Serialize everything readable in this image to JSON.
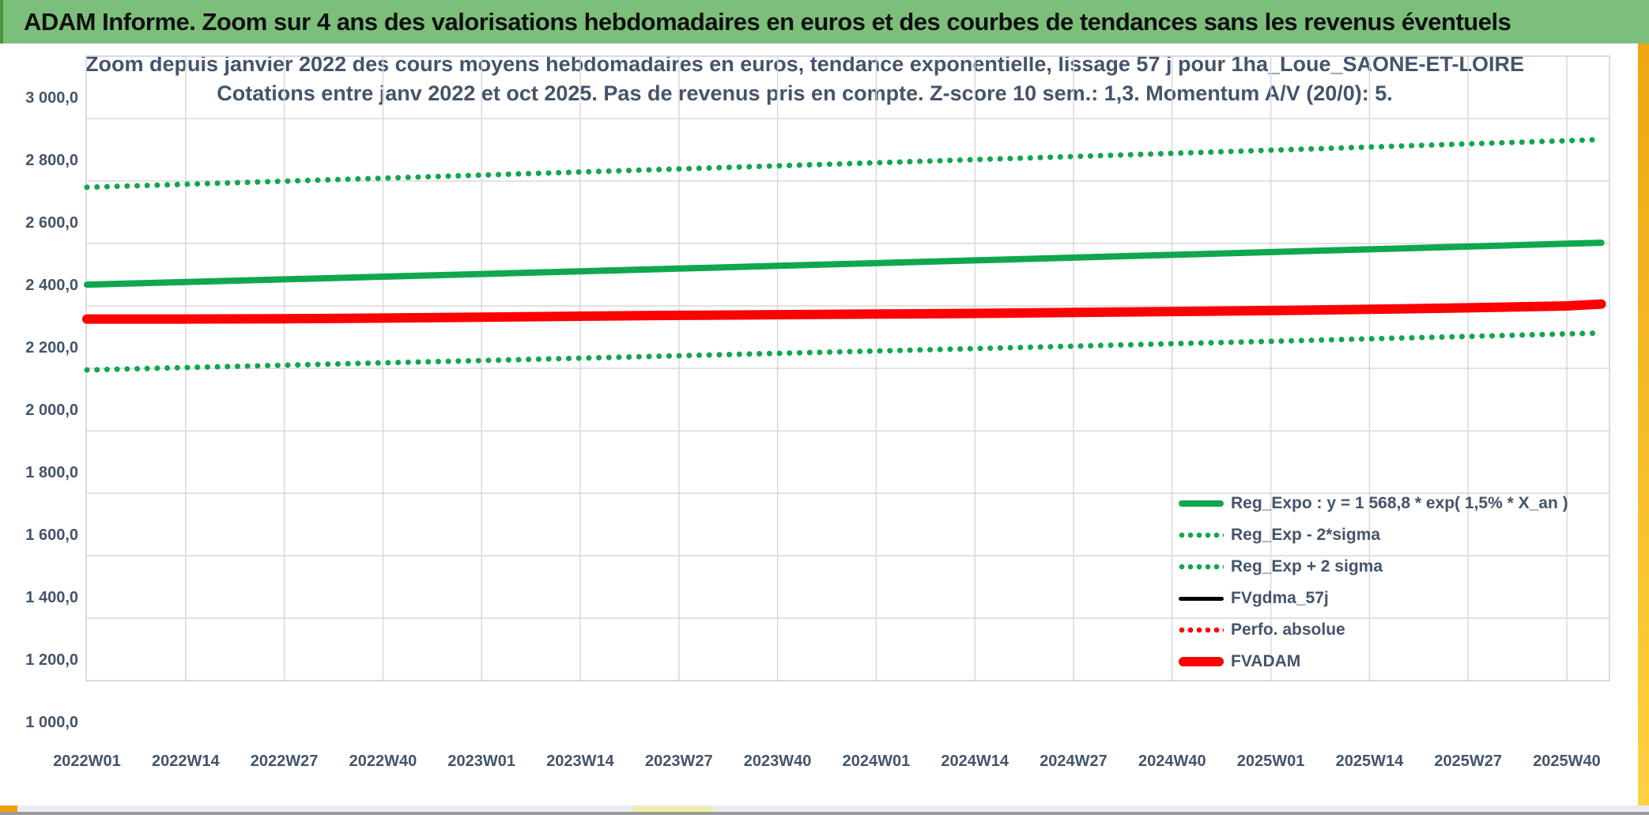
{
  "header": {
    "title": "ADAM Informe. Zoom sur 4 ans des valorisations hebdomadaires en euros et des courbes de tendances sans les revenus éventuels",
    "bg": "#7CBF7B",
    "edge": "#48953F",
    "text_color": "#101010"
  },
  "colors": {
    "text_dark": "#44546A",
    "grid": "#D8D8D8",
    "plot_border": "#D0D3D9",
    "green": "#10A74F",
    "red": "#FF0000",
    "black": "#000000"
  },
  "decor": {
    "right_strip_top": "#EDA612",
    "right_strip_bottom": "#FFD23F",
    "bottom_bar": "#E9EBF2",
    "bottom_edge": "#9A9A9A",
    "orange_chip": "#F0A202",
    "pale_yellow_chip": "#F2EFA0"
  },
  "chart_data": {
    "type": "line",
    "title": "Zoom depuis janvier 2022 des cours moyens hebdomadaires en euros, tendance exponentielle, lissage 57 j pour 1ha_Loue_SAONE-ET-LOIRE",
    "subtitle": "Cotations entre janv 2022 et oct 2025. Pas de revenus pris en compte. Z-score 10 sem.: 1,3. Momentum A/V (20/0): 5.",
    "xlabel": "",
    "ylabel": "",
    "grid": true,
    "legend_position": "inside-bottom-right",
    "ylim": [
      1000,
      3000
    ],
    "y_tick_values": [
      3000,
      2800,
      2600,
      2400,
      2200,
      2000,
      1800,
      1600,
      1400,
      1200,
      1000
    ],
    "y_tick_labels": [
      "3 000,0",
      "2 800,0",
      "2 600,0",
      "2 400,0",
      "2 200,0",
      "2 000,0",
      "1 800,0",
      "1 600,0",
      "1 400,0",
      "1 200,0",
      "1 000,0"
    ],
    "categories": [
      "2022W01",
      "2022W14",
      "2022W27",
      "2022W40",
      "2023W01",
      "2023W14",
      "2023W27",
      "2023W40",
      "2024W01",
      "2024W14",
      "2024W27",
      "2024W40",
      "2025W01",
      "2025W14",
      "2025W27",
      "2025W40"
    ],
    "end_x_fraction": 15.35,
    "series": [
      {
        "key": "reg_expo",
        "name": "Reg_Expo : y = 1 568,8 * exp( 1,5% *  X_an )",
        "color": "#10A74F",
        "style": "solid",
        "width": 8,
        "values": [
          2268.0,
          2276.5,
          2285.1,
          2293.7,
          2302.3,
          2310.9,
          2319.6,
          2328.3,
          2337.0,
          2345.8,
          2354.6,
          2363.5,
          2372.4,
          2381.3,
          2390.2,
          2399.2
        ],
        "end_value": 2402.4
      },
      {
        "key": "reg_exp_minus_2sigma",
        "name": "Reg_Exp - 2*sigma",
        "color": "#10A74F",
        "style": "dotted",
        "width": 7,
        "values": [
          1995.0,
          2002.5,
          2010.0,
          2017.6,
          2025.1,
          2032.7,
          2040.4,
          2048.0,
          2055.7,
          2063.4,
          2071.2,
          2078.9,
          2086.7,
          2094.6,
          2102.4,
          2110.3
        ],
        "end_value": 2113.1
      },
      {
        "key": "reg_exp_plus_2sigma",
        "name": "Reg_Exp + 2 sigma",
        "color": "#10A74F",
        "style": "dotted",
        "width": 7,
        "values": [
          2580.0,
          2589.7,
          2599.4,
          2609.2,
          2619.0,
          2628.8,
          2638.7,
          2648.6,
          2658.5,
          2668.5,
          2678.5,
          2688.6,
          2698.7,
          2708.8,
          2719.0,
          2729.2
        ],
        "end_value": 2732.8
      },
      {
        "key": "fvgdma_57j",
        "name": "FVgdma_57j",
        "color": "#000000",
        "style": "solid",
        "width": 5,
        "values": [
          2158,
          2158,
          2159,
          2161,
          2164,
          2167,
          2170,
          2172,
          2174,
          2176,
          2179,
          2182,
          2185,
          2189,
          2194,
          2200
        ],
        "end_value": 2206
      },
      {
        "key": "perfo_absolue",
        "name": "Perfo. absolue",
        "color": "#FF0000",
        "style": "dotted",
        "width": 6,
        "values": [
          2158,
          2158,
          2159,
          2161,
          2164,
          2167,
          2170,
          2172,
          2174,
          2176,
          2179,
          2182,
          2185,
          2189,
          2194,
          2200
        ],
        "end_value": 2206
      },
      {
        "key": "fvadam",
        "name": "FVADAM",
        "color": "#FF0000",
        "style": "solid",
        "width": 12,
        "values": [
          2158,
          2158,
          2159,
          2161,
          2164,
          2167,
          2170,
          2172,
          2174,
          2176,
          2179,
          2182,
          2185,
          2189,
          2194,
          2200
        ],
        "end_value": 2206
      }
    ]
  }
}
